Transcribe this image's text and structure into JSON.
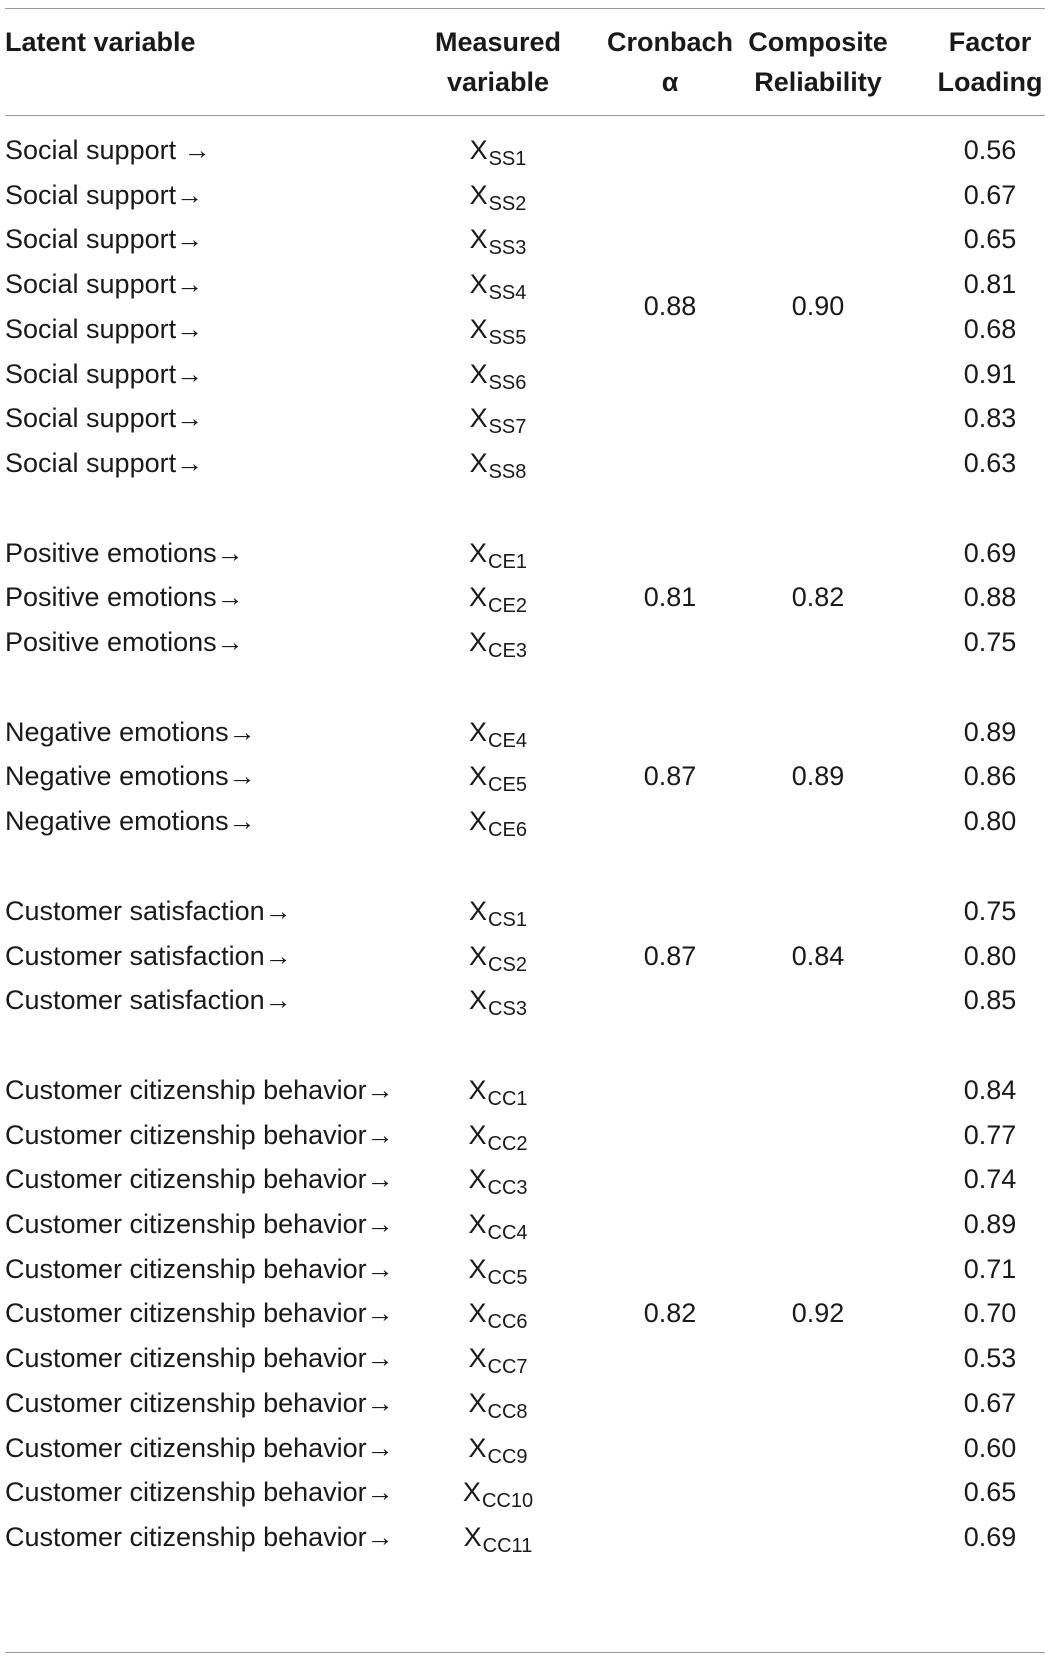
{
  "header": {
    "latent": "Latent variable",
    "measured": [
      "Measured",
      "variable"
    ],
    "alpha": [
      "Cronbach",
      "α"
    ],
    "composite": [
      "Composite",
      "Reliability"
    ],
    "factor": [
      "Factor",
      "Loading"
    ]
  },
  "groups": [
    {
      "alpha": "0.88",
      "composite": "0.90",
      "rows": [
        {
          "latent": "Social support →",
          "base": "X",
          "sub": "SS1",
          "loading": "0.56"
        },
        {
          "latent": "Social support→",
          "base": "X",
          "sub": "SS2",
          "loading": "0.67"
        },
        {
          "latent": "Social support→",
          "base": "X",
          "sub": "SS3",
          "loading": "0.65"
        },
        {
          "latent": "Social support→",
          "base": "X",
          "sub": "SS4",
          "loading": "0.81"
        },
        {
          "latent": "Social support→",
          "base": "X",
          "sub": "SS5",
          "loading": "0.68"
        },
        {
          "latent": "Social support→",
          "base": "X",
          "sub": "SS6",
          "loading": "0.91"
        },
        {
          "latent": "Social support→",
          "base": "X",
          "sub": "SS7",
          "loading": "0.83"
        },
        {
          "latent": "Social support→",
          "base": "X",
          "sub": "SS8",
          "loading": "0.63"
        }
      ]
    },
    {
      "alpha": "0.81",
      "composite": "0.82",
      "rows": [
        {
          "latent": "Positive emotions→",
          "base": "X",
          "sub": "CE1",
          "loading": "0.69"
        },
        {
          "latent": "Positive emotions→",
          "base": "X",
          "sub": "CE2",
          "loading": "0.88"
        },
        {
          "latent": "Positive emotions→",
          "base": "X",
          "sub": "CE3",
          "loading": "0.75"
        }
      ]
    },
    {
      "alpha": "0.87",
      "composite": "0.89",
      "rows": [
        {
          "latent": "Negative emotions→",
          "base": "X",
          "sub": "CE4",
          "loading": "0.89"
        },
        {
          "latent": "Negative emotions→",
          "base": "X",
          "sub": "CE5",
          "loading": "0.86"
        },
        {
          "latent": "Negative emotions→",
          "base": "X",
          "sub": "CE6",
          "loading": "0.80"
        }
      ]
    },
    {
      "alpha": "0.87",
      "composite": "0.84",
      "rows": [
        {
          "latent": "Customer satisfaction→",
          "base": "X",
          "sub": "CS1",
          "loading": "0.75"
        },
        {
          "latent": "Customer satisfaction→",
          "base": "X",
          "sub": "CS2",
          "loading": "0.80"
        },
        {
          "latent": "Customer satisfaction→",
          "base": "X",
          "sub": "CS3",
          "loading": "0.85"
        }
      ]
    },
    {
      "alpha": "0.82",
      "composite": "0.92",
      "rows": [
        {
          "latent": "Customer citizenship behavior→",
          "base": "X",
          "sub": "CC1",
          "loading": "0.84"
        },
        {
          "latent": "Customer citizenship behavior→",
          "base": "X",
          "sub": "CC2",
          "loading": "0.77"
        },
        {
          "latent": "Customer citizenship behavior→",
          "base": "X",
          "sub": "CC3",
          "loading": "0.74"
        },
        {
          "latent": "Customer citizenship behavior→",
          "base": "X",
          "sub": "CC4",
          "loading": "0.89"
        },
        {
          "latent": "Customer citizenship behavior→",
          "base": "X",
          "sub": "CC5",
          "loading": "0.71"
        },
        {
          "latent": "Customer citizenship behavior→",
          "base": "X",
          "sub": "CC6",
          "loading": "0.70"
        },
        {
          "latent": "Customer citizenship behavior→",
          "base": "X",
          "sub": "CC7",
          "loading": "0.53"
        },
        {
          "latent": "Customer citizenship behavior→",
          "base": "X",
          "sub": "CC8",
          "loading": "0.67"
        },
        {
          "latent": "Customer citizenship behavior→",
          "base": "X",
          "sub": "CC9",
          "loading": "0.60"
        },
        {
          "latent": "Customer citizenship behavior→",
          "base": "X",
          "sub": "CC10",
          "loading": "0.65"
        },
        {
          "latent": "Customer citizenship behavior→",
          "base": "X",
          "sub": "CC11",
          "loading": "0.69"
        }
      ]
    }
  ]
}
